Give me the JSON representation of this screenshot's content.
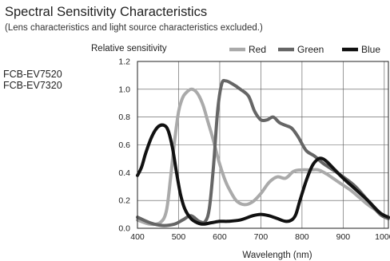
{
  "header": {
    "title": "Spectral Sensitivity Characteristics",
    "subtitle": "(Lens characteristics and light source characteristics excluded.)"
  },
  "models": [
    "FCB-EV7520",
    "FCB-EV7320"
  ],
  "chart_data": {
    "type": "line",
    "title": "Spectral Sensitivity Characteristics",
    "subtitle": "(Lens characteristics and light source characteristics excluded.)",
    "xlabel": "Wavelength (nm)",
    "ylabel": "Relative sensitivity",
    "xlim": [
      400,
      1010
    ],
    "ylim": [
      0,
      1.2
    ],
    "xticks": [
      400,
      500,
      600,
      700,
      800,
      900,
      1000
    ],
    "yticks": [
      0.0,
      0.2,
      0.4,
      0.6,
      0.8,
      1.0,
      1.2
    ],
    "ytick_labels": [
      "0.0",
      "0.2",
      "0.4",
      "0.6",
      "0.8",
      "1.0",
      "1.2"
    ],
    "grid": true,
    "legend_position": "top-right",
    "series": [
      {
        "name": "Red",
        "color": "#aaaaaa",
        "x": [
          400,
          430,
          455,
          470,
          480,
          490,
          500,
          510,
          520,
          530,
          540,
          550,
          560,
          570,
          580,
          590,
          600,
          610,
          620,
          640,
          660,
          680,
          700,
          720,
          740,
          760,
          780,
          800,
          820,
          840,
          860,
          880,
          900,
          920,
          940,
          960,
          980,
          1000
        ],
        "values": [
          0.06,
          0.03,
          0.04,
          0.12,
          0.35,
          0.62,
          0.84,
          0.94,
          0.98,
          1.0,
          0.99,
          0.95,
          0.88,
          0.78,
          0.68,
          0.57,
          0.46,
          0.37,
          0.3,
          0.2,
          0.17,
          0.19,
          0.25,
          0.33,
          0.37,
          0.36,
          0.41,
          0.42,
          0.42,
          0.42,
          0.39,
          0.35,
          0.31,
          0.27,
          0.22,
          0.17,
          0.13,
          0.09
        ]
      },
      {
        "name": "Green",
        "color": "#666666",
        "x": [
          400,
          430,
          460,
          490,
          510,
          530,
          550,
          565,
          575,
          585,
          595,
          605,
          615,
          630,
          650,
          670,
          685,
          700,
          715,
          730,
          745,
          760,
          775,
          790,
          810,
          830,
          850,
          870,
          900,
          930,
          960,
          990,
          1010
        ],
        "values": [
          0.08,
          0.04,
          0.02,
          0.03,
          0.06,
          0.09,
          0.05,
          0.05,
          0.15,
          0.45,
          0.85,
          1.04,
          1.06,
          1.04,
          1.0,
          0.95,
          0.84,
          0.78,
          0.78,
          0.8,
          0.76,
          0.74,
          0.72,
          0.66,
          0.56,
          0.52,
          0.47,
          0.43,
          0.37,
          0.3,
          0.2,
          0.1,
          0.07
        ]
      },
      {
        "name": "Blue",
        "color": "#111111",
        "x": [
          400,
          410,
          420,
          435,
          450,
          465,
          475,
          485,
          495,
          505,
          515,
          530,
          545,
          560,
          580,
          600,
          620,
          650,
          680,
          700,
          720,
          740,
          760,
          775,
          785,
          795,
          810,
          825,
          840,
          850,
          860,
          880,
          900,
          930,
          960,
          990,
          1010
        ],
        "values": [
          0.38,
          0.44,
          0.54,
          0.66,
          0.73,
          0.74,
          0.7,
          0.58,
          0.4,
          0.24,
          0.14,
          0.07,
          0.04,
          0.03,
          0.04,
          0.05,
          0.05,
          0.06,
          0.09,
          0.1,
          0.09,
          0.07,
          0.05,
          0.06,
          0.1,
          0.2,
          0.34,
          0.45,
          0.5,
          0.5,
          0.48,
          0.42,
          0.36,
          0.28,
          0.2,
          0.11,
          0.08
        ]
      }
    ]
  }
}
